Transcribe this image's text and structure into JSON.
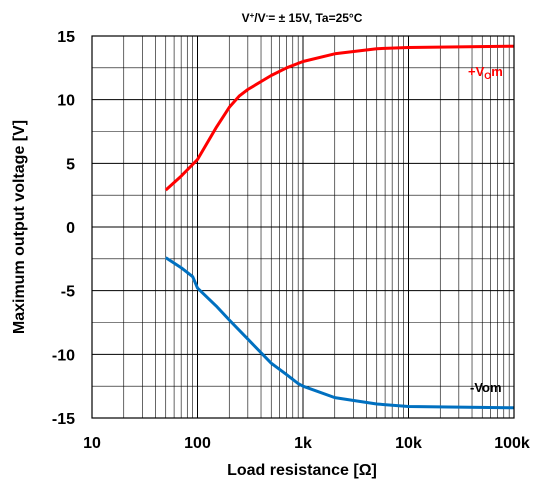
{
  "chart_data": {
    "type": "line",
    "title_main": "V",
    "title_sup1": "+",
    "title_mid": "/V",
    "title_sup2": "-",
    "title_rest": "= ± 15V, Ta=25°C",
    "xlabel": "Load resistance [Ω]",
    "ylabel": "Maximum output voltage [V]",
    "x_scale": "log",
    "xlim": [
      10,
      100000
    ],
    "ylim": [
      -15,
      15
    ],
    "grid": true,
    "x_ticks": [
      {
        "value": 10,
        "label": "10"
      },
      {
        "value": 100,
        "label": "100"
      },
      {
        "value": 1000,
        "label": "1k"
      },
      {
        "value": 10000,
        "label": "10k"
      },
      {
        "value": 100000,
        "label": "100k"
      }
    ],
    "y_ticks": [
      {
        "value": 15,
        "label": "15"
      },
      {
        "value": 10,
        "label": "10"
      },
      {
        "value": 5,
        "label": "5"
      },
      {
        "value": 0,
        "label": "0"
      },
      {
        "value": -5,
        "label": "-5"
      },
      {
        "value": -10,
        "label": "-10"
      },
      {
        "value": -15,
        "label": "-15"
      }
    ],
    "series": [
      {
        "name": "+Vom",
        "label_main": "+V",
        "label_sub": "O",
        "label_end": "m",
        "color": "#ff0000",
        "points": [
          [
            50,
            2.9
          ],
          [
            70,
            4.0
          ],
          [
            100,
            5.3
          ],
          [
            150,
            7.8
          ],
          [
            200,
            9.4
          ],
          [
            250,
            10.3
          ],
          [
            300,
            10.8
          ],
          [
            500,
            11.9
          ],
          [
            700,
            12.5
          ],
          [
            1000,
            13.0
          ],
          [
            2000,
            13.6
          ],
          [
            5000,
            14.0
          ],
          [
            10000,
            14.1
          ],
          [
            100000,
            14.2
          ]
        ]
      },
      {
        "name": "-Vom",
        "label_main": "-Vom",
        "color": "#0070c0",
        "points": [
          [
            50,
            -2.4
          ],
          [
            70,
            -3.2
          ],
          [
            90,
            -3.9
          ],
          [
            100,
            -4.8
          ],
          [
            150,
            -6.2
          ],
          [
            200,
            -7.3
          ],
          [
            300,
            -8.8
          ],
          [
            500,
            -10.7
          ],
          [
            700,
            -11.6
          ],
          [
            900,
            -12.3
          ],
          [
            1000,
            -12.5
          ],
          [
            2000,
            -13.4
          ],
          [
            5000,
            -13.9
          ],
          [
            10000,
            -14.1
          ],
          [
            100000,
            -14.2
          ]
        ]
      }
    ]
  }
}
